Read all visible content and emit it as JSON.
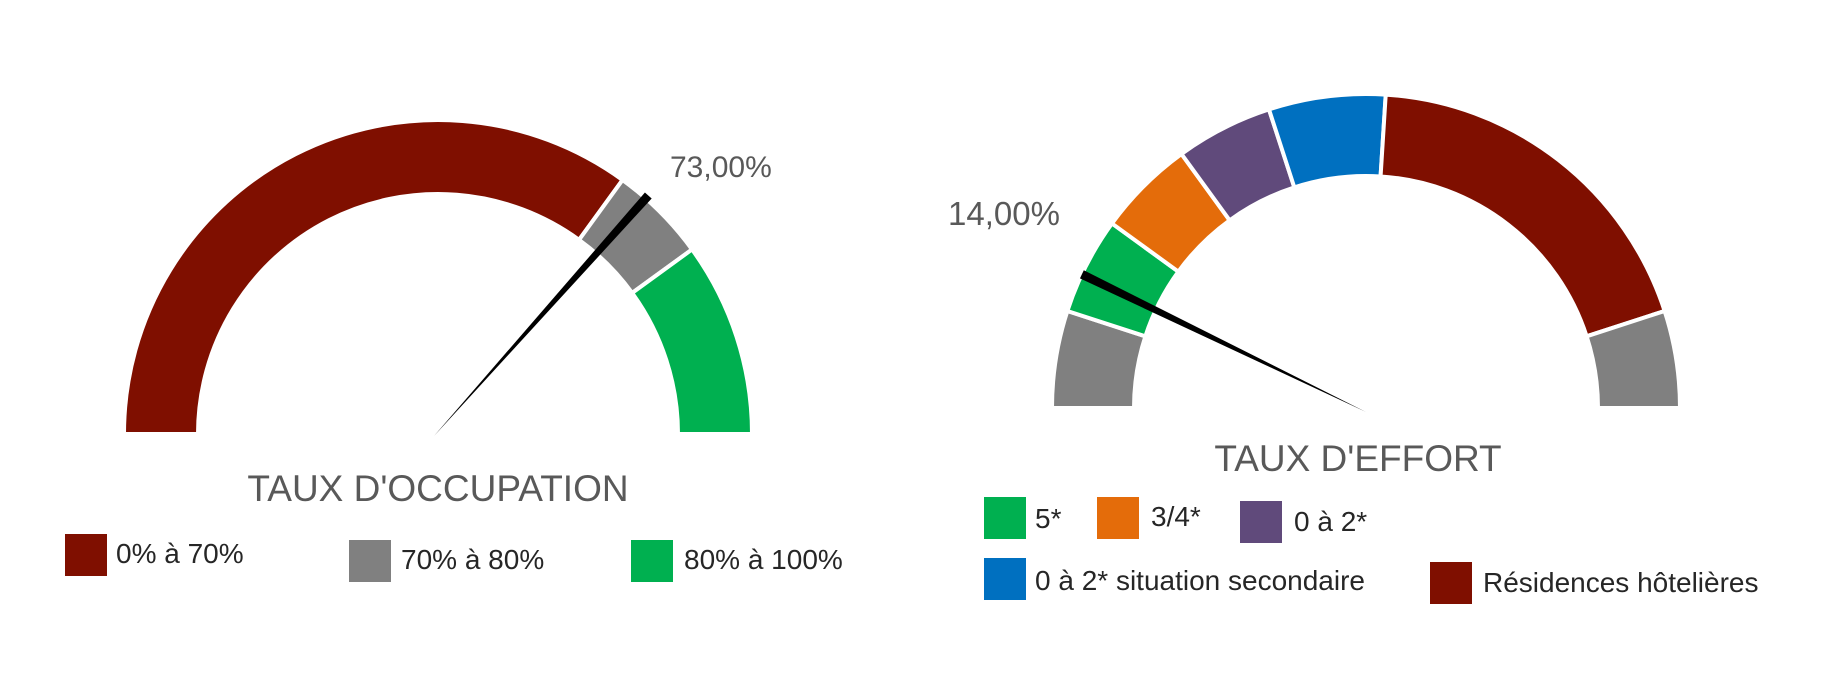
{
  "chart_data": [
    {
      "type": "gauge",
      "title": "TAUX D'OCCUPATION",
      "value_label": "73,00%",
      "value": 73,
      "range": [
        0,
        100
      ],
      "bands": [
        {
          "name": "0% à 70%",
          "from": 0,
          "to": 70,
          "color": "#7f0f00"
        },
        {
          "name": "70% à 80%",
          "from": 70,
          "to": 80,
          "color": "#808080"
        },
        {
          "name": "80% à 100%",
          "from": 80,
          "to": 100,
          "color": "#00b050"
        }
      ],
      "legend": [
        "0% à 70%",
        "70% à 80%",
        "80% à 100%"
      ]
    },
    {
      "type": "gauge",
      "title": "TAUX D'EFFORT",
      "value_label": "14,00%",
      "value": 14,
      "range": [
        0,
        100
      ],
      "bands": [
        {
          "from": 0,
          "to": 10,
          "color": "#808080"
        },
        {
          "name": "5*",
          "from": 10,
          "to": 20,
          "color": "#00b050"
        },
        {
          "name": "3/4*",
          "from": 20,
          "to": 30,
          "color": "#e46c0a"
        },
        {
          "name": "0 à 2*",
          "from": 30,
          "to": 40,
          "color": "#604a7b"
        },
        {
          "name": "0 à 2* situation secondaire",
          "from": 40,
          "to": 52,
          "color": "#0070c0"
        },
        {
          "name": "Résidences hôtelières",
          "from": 52,
          "to": 90,
          "color": "#7f0f00"
        },
        {
          "from": 90,
          "to": 100,
          "color": "#808080"
        }
      ],
      "legend": [
        "5*",
        "3/4*",
        "0 à 2*",
        "0 à 2* situation secondaire",
        "Résidences hôtelières"
      ]
    }
  ]
}
